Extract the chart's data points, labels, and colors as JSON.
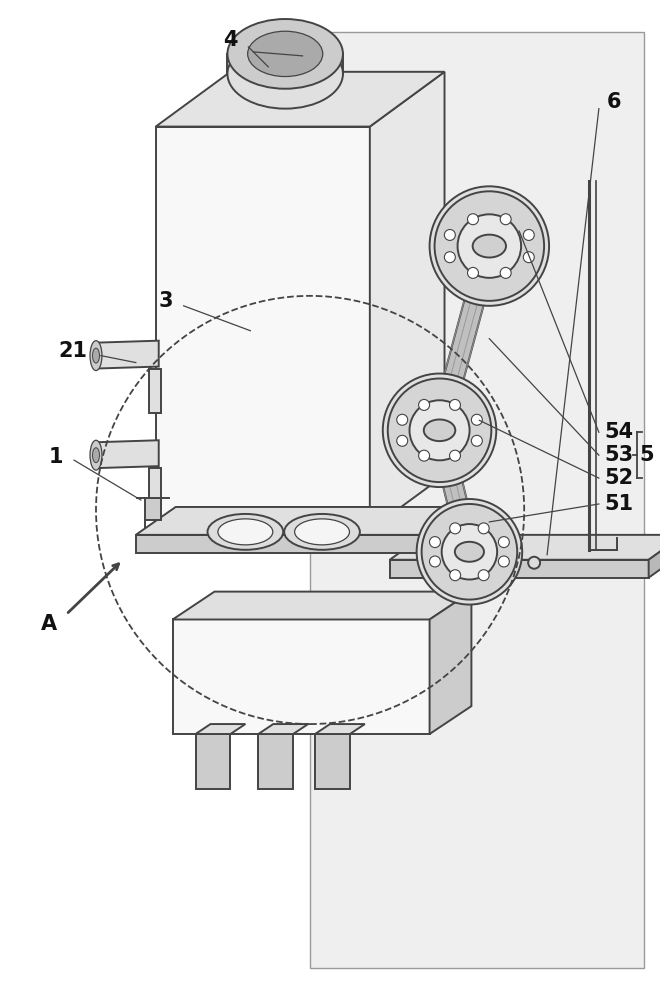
{
  "bg_color": "#ffffff",
  "line_color": "#444444",
  "face_light": "#f0f0f0",
  "face_mid": "#e0e0e0",
  "face_dark": "#cccccc",
  "face_darker": "#b8b8b8",
  "belt_color": "#c8c8c8",
  "sprocket_color": "#d5d5d5",
  "back_panel_color": "#eeeeee",
  "tank_front_color": "#f8f8f8",
  "tank_right_color": "#e8e8e8",
  "tank_top_color": "#e4e4e4"
}
